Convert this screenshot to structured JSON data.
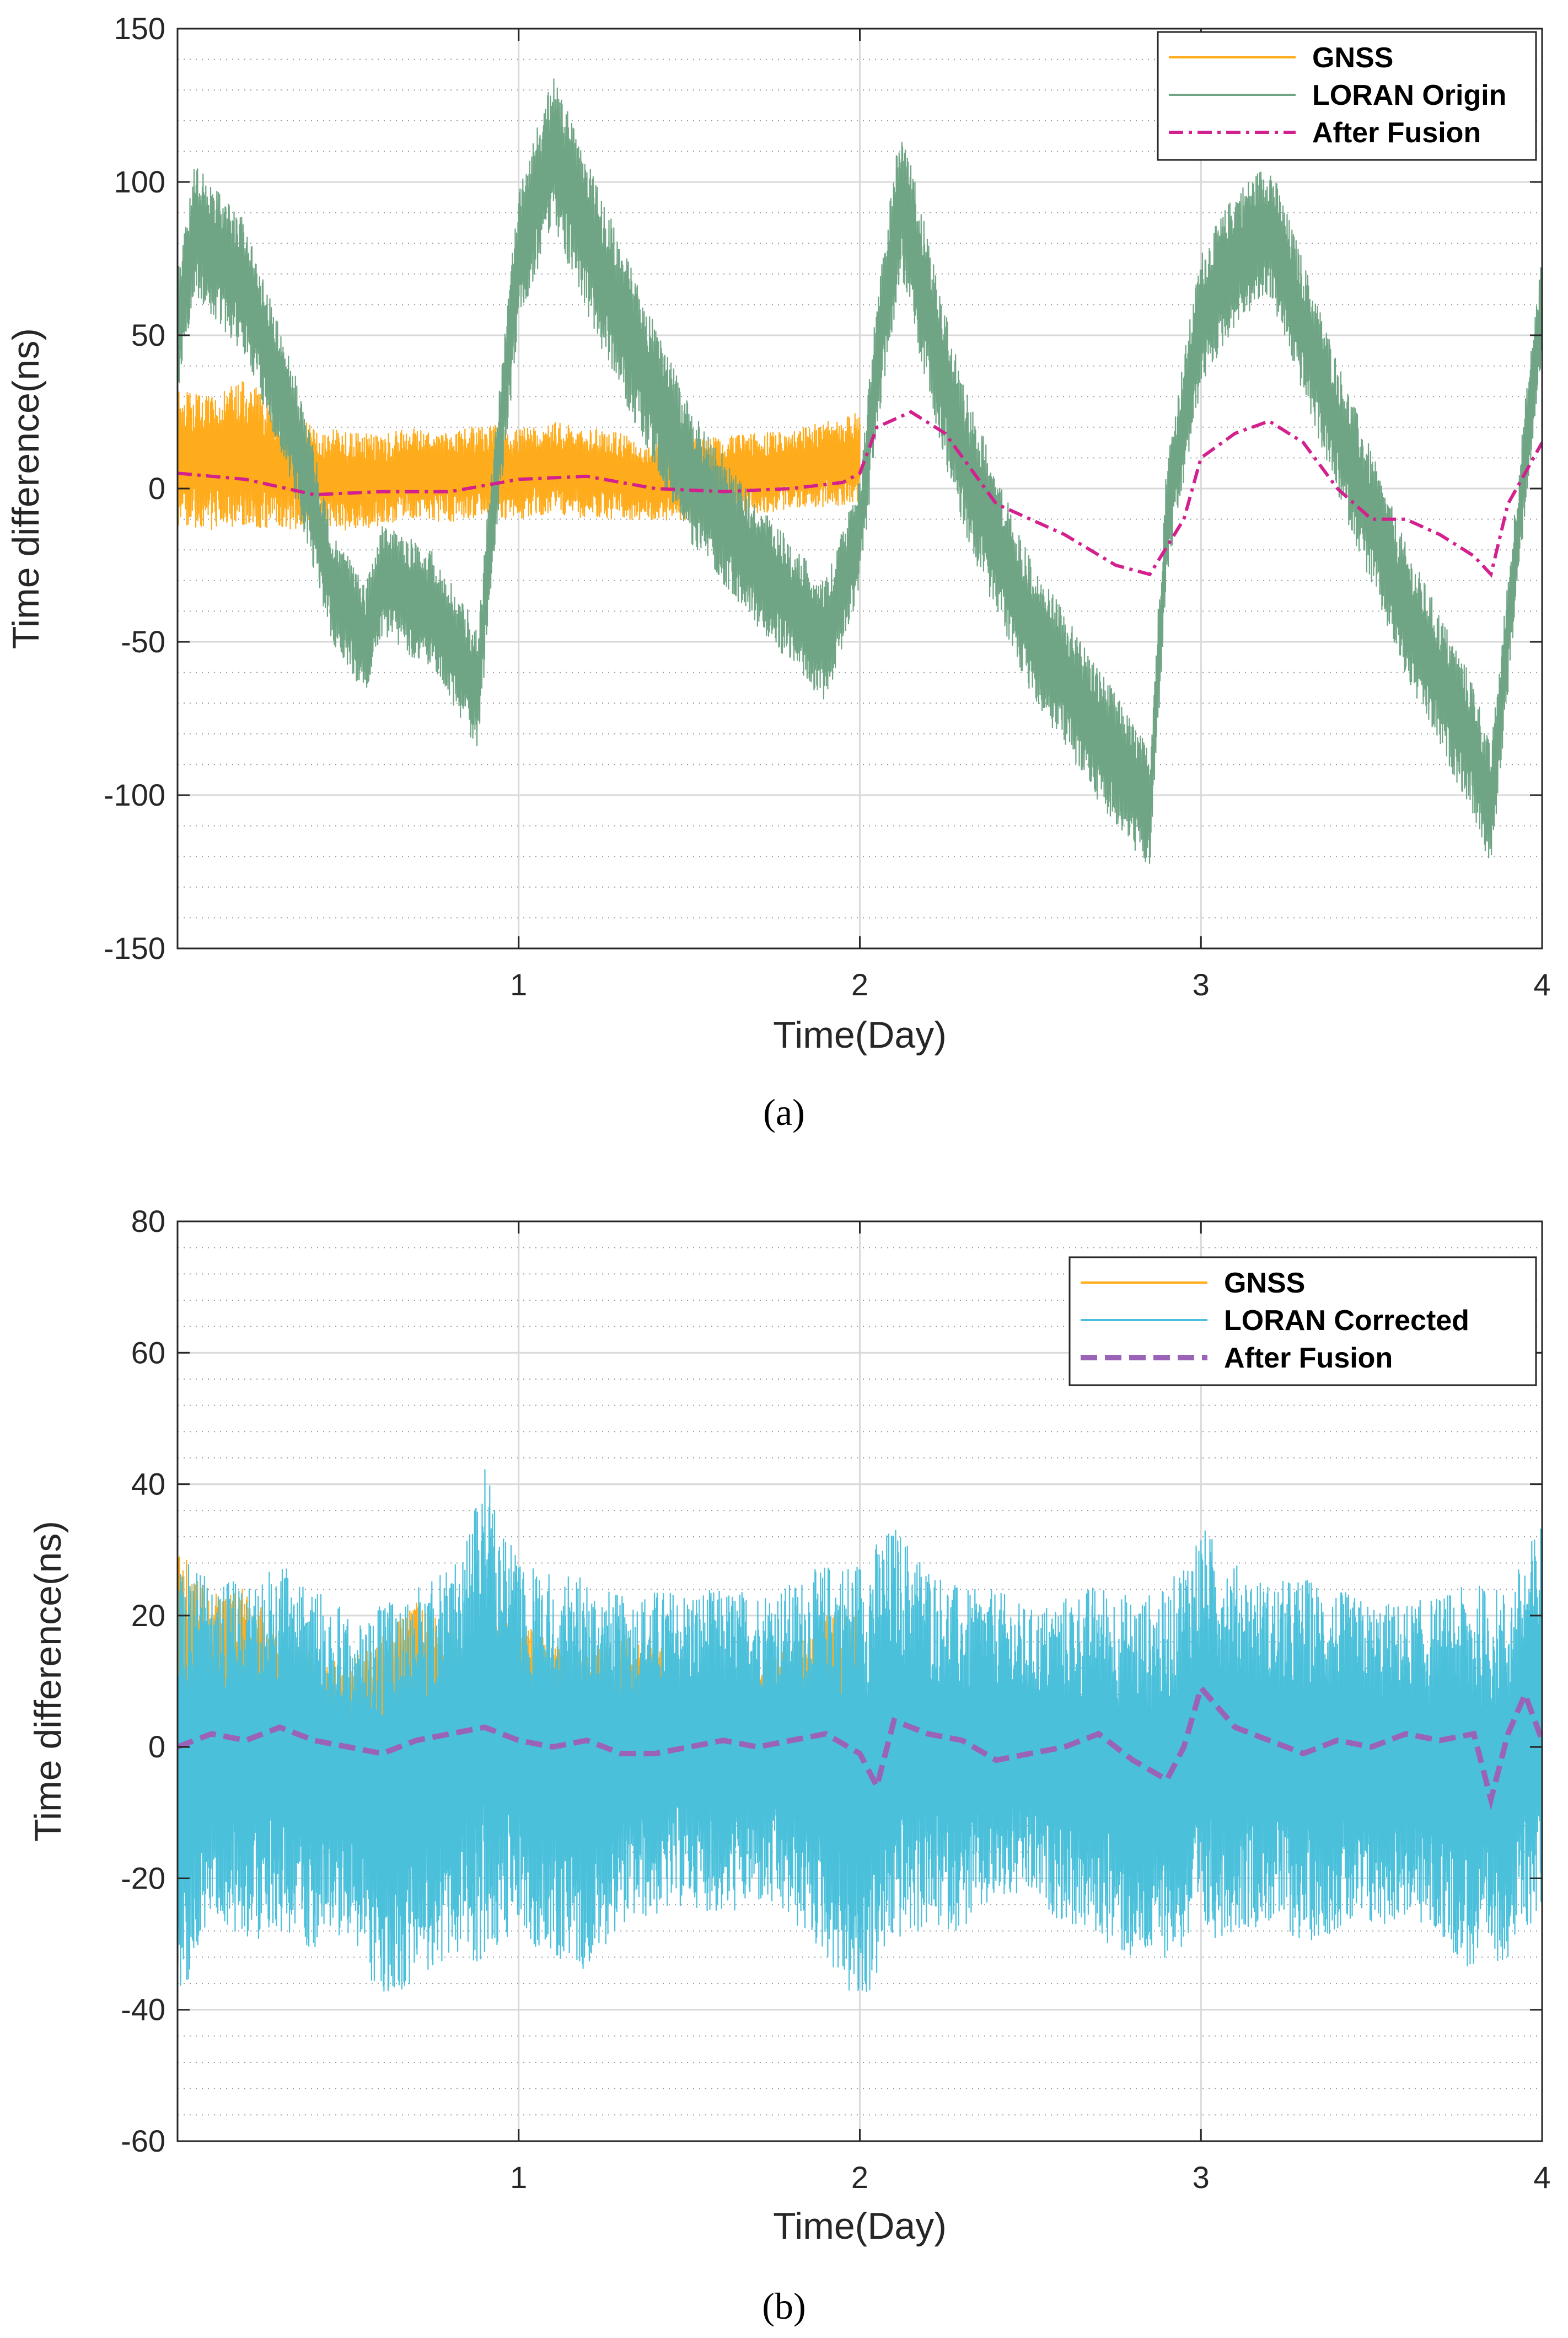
{
  "chart_data": [
    {
      "type": "line",
      "caption": "(a)",
      "xlabel": "Time(Day)",
      "ylabel": "Time difference(ns)",
      "xlim": [
        0,
        4
      ],
      "ylim": [
        -150,
        150
      ],
      "xticks": [
        1,
        2,
        3,
        4
      ],
      "yticks": [
        -150,
        -100,
        -50,
        0,
        50,
        100,
        150
      ],
      "grid": true,
      "minor_grid": true,
      "legend_position": "top-right",
      "series": [
        {
          "name": "GNSS",
          "color": "#FFAC1C",
          "style": "solid",
          "x": [
            0,
            0.1,
            0.2,
            0.3,
            0.4,
            0.5,
            0.6,
            0.7,
            0.8,
            0.9,
            1.0,
            1.1,
            1.2,
            1.3,
            1.4,
            1.5,
            1.6,
            1.7,
            1.8,
            1.9,
            2.0
          ],
          "y": [
            10,
            8,
            12,
            6,
            4,
            2,
            3,
            5,
            4,
            6,
            5,
            7,
            5,
            4,
            2,
            3,
            4,
            5,
            6,
            8,
            10
          ],
          "noise": [
            22,
            22,
            24,
            20,
            17,
            16,
            15,
            15,
            15,
            15,
            15,
            15,
            15,
            14,
            13,
            13,
            13,
            13,
            13,
            14,
            15
          ]
        },
        {
          "name": "LORAN Origin",
          "color": "#6FA584",
          "style": "solid",
          "x": [
            0,
            0.05,
            0.2,
            0.35,
            0.45,
            0.55,
            0.6,
            0.75,
            0.88,
            0.93,
            1.0,
            1.1,
            1.3,
            1.5,
            1.7,
            1.9,
            2.0,
            2.05,
            2.12,
            2.3,
            2.5,
            2.7,
            2.85,
            2.9,
            3.0,
            3.1,
            3.2,
            3.4,
            3.6,
            3.8,
            3.85,
            3.95,
            4.0
          ],
          "y": [
            50,
            85,
            65,
            15,
            -30,
            -50,
            -30,
            -40,
            -65,
            0,
            75,
            110,
            55,
            5,
            -25,
            -50,
            -15,
            40,
            95,
            10,
            -45,
            -80,
            -105,
            -10,
            55,
            75,
            85,
            20,
            -40,
            -85,
            -105,
            10,
            60
          ],
          "noise": [
            20,
            22,
            22,
            20,
            20,
            18,
            18,
            20,
            20,
            20,
            22,
            25,
            25,
            22,
            20,
            20,
            18,
            22,
            25,
            25,
            22,
            22,
            20,
            20,
            22,
            22,
            22,
            22,
            22,
            22,
            20,
            18,
            18
          ]
        },
        {
          "name": "After Fusion",
          "color": "#D3208E",
          "style": "dash-dot",
          "x": [
            0,
            0.2,
            0.4,
            0.6,
            0.8,
            1.0,
            1.2,
            1.4,
            1.6,
            1.8,
            1.95,
            2.0,
            2.05,
            2.15,
            2.25,
            2.4,
            2.6,
            2.75,
            2.85,
            2.95,
            3.0,
            3.1,
            3.2,
            3.3,
            3.4,
            3.5,
            3.6,
            3.7,
            3.8,
            3.85,
            3.9,
            4.0
          ],
          "y": [
            5,
            3,
            -2,
            -1,
            -1,
            3,
            4,
            0,
            -1,
            0,
            2,
            5,
            20,
            25,
            18,
            -5,
            -15,
            -25,
            -28,
            -10,
            10,
            18,
            22,
            15,
            0,
            -10,
            -10,
            -15,
            -22,
            -28,
            -5,
            15
          ]
        }
      ]
    },
    {
      "type": "line",
      "caption": "(b)",
      "xlabel": "Time(Day)",
      "ylabel": "Time difference(ns)",
      "xlim": [
        0,
        4
      ],
      "ylim": [
        -60,
        80
      ],
      "xticks": [
        1,
        2,
        3,
        4
      ],
      "yticks": [
        -60,
        -40,
        -20,
        0,
        20,
        40,
        60,
        80
      ],
      "grid": true,
      "minor_grid": true,
      "legend_position": "top-right",
      "series": [
        {
          "name": "GNSS",
          "color": "#FFAC1C",
          "style": "solid",
          "x": [
            0,
            0.1,
            0.2,
            0.3,
            0.4,
            0.5,
            0.6,
            0.7,
            0.8,
            0.9,
            1.0,
            1.1,
            1.2,
            1.3,
            1.4,
            1.5,
            1.6,
            1.7,
            1.8,
            1.9,
            2.0
          ],
          "y": [
            10,
            8,
            10,
            6,
            4,
            3,
            5,
            10,
            8,
            2,
            5,
            4,
            4,
            5,
            6,
            3,
            2,
            3,
            5,
            8,
            10
          ],
          "noise": [
            20,
            16,
            14,
            12,
            10,
            10,
            12,
            12,
            10,
            18,
            14,
            12,
            10,
            12,
            10,
            10,
            10,
            10,
            10,
            12,
            12
          ]
        },
        {
          "name": "LORAN Corrected",
          "color": "#4AC0DB",
          "style": "solid",
          "x": [
            0,
            0.1,
            0.2,
            0.3,
            0.4,
            0.5,
            0.6,
            0.7,
            0.8,
            0.9,
            1.0,
            1.1,
            1.2,
            1.3,
            1.4,
            1.5,
            1.6,
            1.7,
            1.8,
            1.9,
            2.0,
            2.1,
            2.2,
            2.3,
            2.4,
            2.5,
            2.6,
            2.7,
            2.8,
            2.9,
            3.0,
            3.1,
            3.2,
            3.3,
            3.4,
            3.5,
            3.6,
            3.7,
            3.8,
            3.9,
            4.0
          ],
          "y": [
            -5,
            0,
            -2,
            0,
            -3,
            -5,
            -8,
            -6,
            -2,
            5,
            0,
            -3,
            -4,
            -2,
            -1,
            0,
            -1,
            0,
            -1,
            -2,
            -6,
            2,
            0,
            -2,
            0,
            -1,
            -2,
            -2,
            -5,
            -4,
            2,
            0,
            -1,
            -2,
            -2,
            -3,
            -2,
            -3,
            -5,
            -4,
            5
          ],
          "noise": [
            35,
            25,
            28,
            28,
            28,
            25,
            30,
            30,
            30,
            38,
            28,
            30,
            30,
            25,
            25,
            24,
            25,
            24,
            26,
            30,
            35,
            32,
            28,
            26,
            24,
            22,
            25,
            27,
            28,
            28,
            32,
            28,
            26,
            28,
            26,
            25,
            24,
            26,
            30,
            28,
            30
          ]
        },
        {
          "name": "After Fusion",
          "color": "#9A63B8",
          "style": "dashed",
          "x": [
            0,
            0.1,
            0.2,
            0.3,
            0.4,
            0.5,
            0.6,
            0.7,
            0.8,
            0.9,
            1.0,
            1.1,
            1.2,
            1.3,
            1.4,
            1.5,
            1.6,
            1.7,
            1.8,
            1.9,
            2.0,
            2.05,
            2.1,
            2.2,
            2.3,
            2.4,
            2.5,
            2.6,
            2.7,
            2.8,
            2.9,
            2.95,
            3.0,
            3.1,
            3.2,
            3.3,
            3.4,
            3.5,
            3.6,
            3.7,
            3.8,
            3.85,
            3.9,
            3.95,
            4.0
          ],
          "y": [
            0,
            2,
            1,
            3,
            1,
            0,
            -1,
            1,
            2,
            3,
            1,
            0,
            1,
            -1,
            -1,
            0,
            1,
            0,
            1,
            2,
            -1,
            -6,
            4,
            2,
            1,
            -2,
            -1,
            0,
            2,
            -2,
            -5,
            0,
            9,
            3,
            1,
            -1,
            1,
            0,
            2,
            1,
            2,
            -8,
            2,
            8,
            1
          ]
        }
      ]
    }
  ]
}
